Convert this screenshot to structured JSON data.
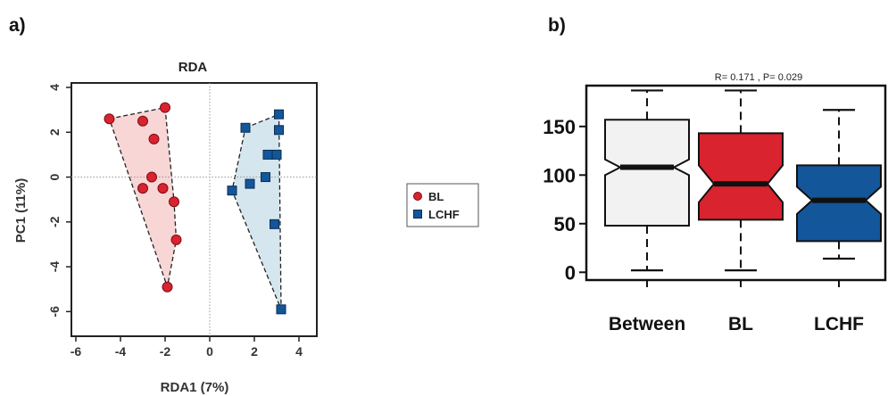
{
  "panels": {
    "a": "a)",
    "b": "b)"
  },
  "colors": {
    "bl_fill": "#d9232e",
    "bl_hull": "#f8d6d6",
    "lchf_fill": "#13569a",
    "lchf_hull": "#d5e6ef",
    "between_box": "#f2f2f2"
  },
  "chart_data": [
    {
      "type": "scatter",
      "title": "RDA",
      "xlabel": "RDA1 (7%)",
      "ylabel": "PC1 (11%)",
      "xlim": [
        -6.2,
        4.8
      ],
      "ylim": [
        -7.1,
        4.2
      ],
      "x_ticks": [
        -6,
        -4,
        -2,
        0,
        2,
        4
      ],
      "y_ticks": [
        4,
        2,
        0,
        -2,
        -4,
        -6
      ],
      "reference_lines": {
        "x": 0,
        "y": 0
      },
      "series": [
        {
          "name": "BL",
          "marker": "circle",
          "color": "#d9232e",
          "points": [
            [
              -4.5,
              2.6
            ],
            [
              -3.0,
              2.5
            ],
            [
              -2.0,
              3.1
            ],
            [
              -2.5,
              1.7
            ],
            [
              -2.6,
              0.0
            ],
            [
              -3.0,
              -0.5
            ],
            [
              -2.1,
              -0.5
            ],
            [
              -1.6,
              -1.1
            ],
            [
              -1.5,
              -2.8
            ],
            [
              -1.9,
              -4.9
            ]
          ],
          "hull": [
            [
              -4.5,
              2.6
            ],
            [
              -2.0,
              3.1
            ],
            [
              -1.6,
              -1.1
            ],
            [
              -1.5,
              -2.8
            ],
            [
              -1.9,
              -4.9
            ]
          ]
        },
        {
          "name": "LCHF",
          "marker": "square",
          "color": "#13569a",
          "points": [
            [
              3.1,
              2.8
            ],
            [
              1.6,
              2.2
            ],
            [
              3.1,
              2.1
            ],
            [
              2.6,
              1.0
            ],
            [
              3.0,
              1.0
            ],
            [
              2.5,
              0.0
            ],
            [
              1.8,
              -0.3
            ],
            [
              1.0,
              -0.6
            ],
            [
              2.9,
              -2.1
            ],
            [
              3.2,
              -5.9
            ]
          ],
          "hull": [
            [
              1.6,
              2.2
            ],
            [
              3.1,
              2.8
            ],
            [
              3.2,
              -5.9
            ],
            [
              1.0,
              -0.6
            ]
          ]
        }
      ],
      "legend": [
        "BL",
        "LCHF"
      ],
      "legend_placement": "right-outside"
    },
    {
      "type": "box",
      "annotation": "R= 0.171 , P= 0.029",
      "ylim": [
        -8,
        192
      ],
      "y_ticks": [
        0,
        50,
        100,
        150
      ],
      "notched": true,
      "categories": [
        "Between",
        "BL",
        "LCHF"
      ],
      "boxes": [
        {
          "category": "Between",
          "min": 2,
          "q1": 48,
          "median": 108,
          "q3": 157,
          "max": 187,
          "notch": [
            100,
            116
          ],
          "color": "#f2f2f2"
        },
        {
          "category": "BL",
          "min": 2,
          "q1": 54,
          "median": 91,
          "q3": 143,
          "max": 187,
          "notch": [
            72,
            110
          ],
          "color": "#d9232e"
        },
        {
          "category": "LCHF",
          "min": 14,
          "q1": 32,
          "median": 74,
          "q3": 110,
          "max": 167,
          "notch": [
            60,
            88
          ],
          "color": "#13569a"
        }
      ]
    }
  ]
}
